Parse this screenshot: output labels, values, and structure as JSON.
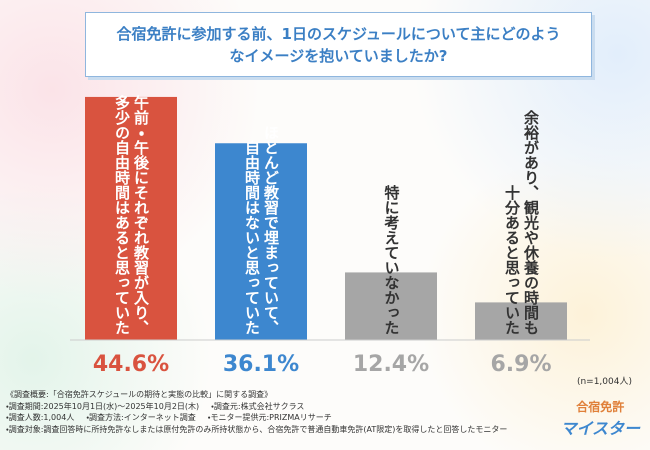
{
  "chart_data": {
    "type": "bar",
    "title": "合宿免許に参加する前、1日のスケジュールについて主にどのようなイメージを抱いていましたか?",
    "categories": [
      "午前・午後にそれぞれ教習が入り、多少の自由時間はあると思っていた",
      "ほとんど教習で埋まっていて、自由時間はないと思っていた",
      "特に考えていなかった",
      "余裕があり、観光や休養の時間も十分あると思っていた"
    ],
    "values": [
      44.6,
      36.1,
      12.4,
      6.9
    ],
    "value_labels": [
      "44.6%",
      "36.1%",
      "12.4%",
      "6.9%"
    ],
    "colors": [
      "#d9533f",
      "#3d87cf",
      "#a6a6a6",
      "#a6a6a6"
    ],
    "note": "(n=1,004人)"
  },
  "footnotes": [
    "《調査概要:「合宿免許スケジュールの期待と実態の比較」に関する調査》",
    "・調査期間:2025年10月1日(水)〜2025年10月2日(木)",
    "・調査元:株式会社サクラス",
    "・調査人数:1,004人",
    "・調査方法:インターネット調査",
    "・モニター提供元:PRIZMAリサーチ",
    "・調査対象:調査回答時に所持免許なしまたは原付免許のみ所持状態から、合宿免許で普通自動車免許(AT限定)を取得したと回答したモニター"
  ],
  "logo": {
    "line1": "合宿免許",
    "line2": "マイスター"
  }
}
